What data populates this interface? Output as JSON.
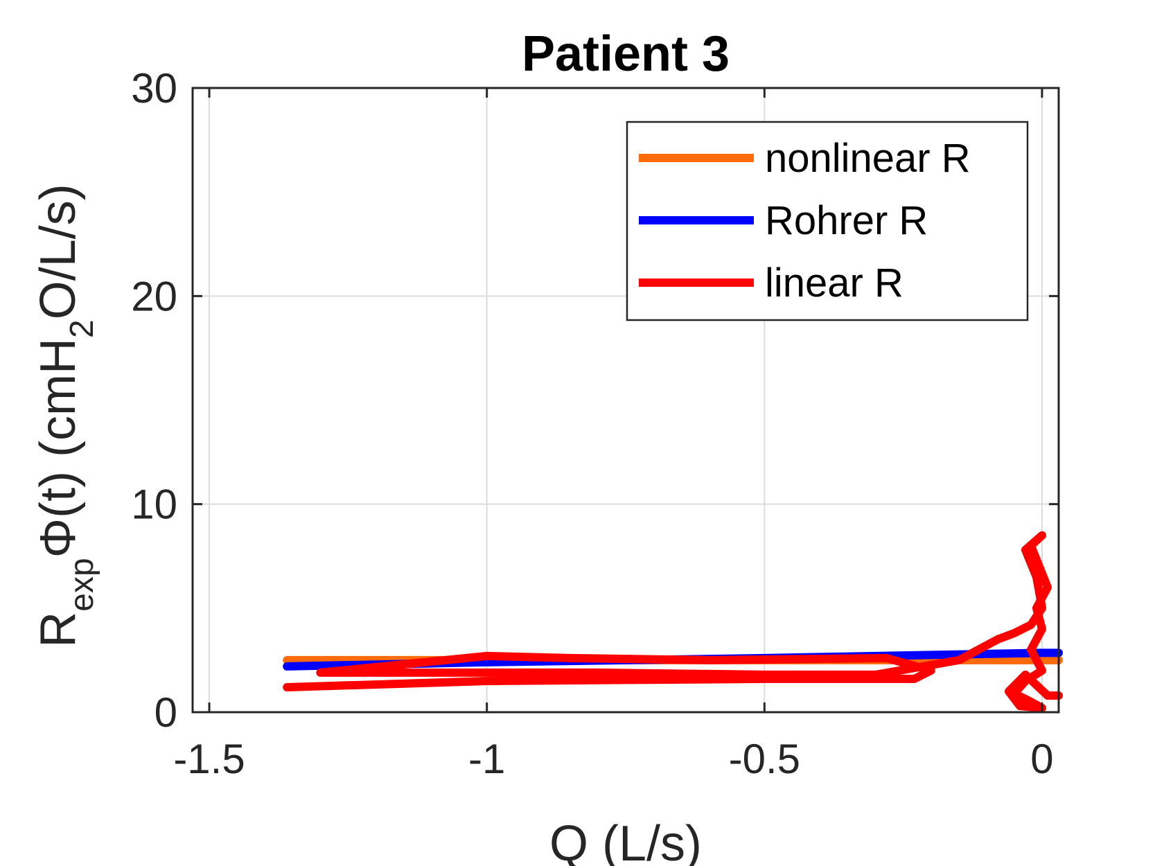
{
  "chart_data": {
    "type": "line",
    "title": "Patient 3",
    "xlabel": "Q (L/s)",
    "ylabel": {
      "main": "R",
      "sub_exp": "exp",
      "phi": "Φ(t) (cmH",
      "sub_2": "2",
      "rest": "O/L/s)"
    },
    "xlim": [
      -1.53,
      0.03
    ],
    "ylim": [
      0,
      30
    ],
    "xticks": [
      -1.5,
      -1,
      -0.5,
      0
    ],
    "xtick_labels": [
      "-1.5",
      "-1",
      "-0.5",
      "0"
    ],
    "yticks": [
      0,
      10,
      20,
      30
    ],
    "ytick_labels": [
      "0",
      "10",
      "20",
      "30"
    ],
    "grid": true,
    "legend_position": "top-right",
    "series": [
      {
        "name": "nonlinear R",
        "color": "#FF6A0A",
        "x": [
          -1.36,
          -1.0,
          -0.5,
          0.0,
          0.03
        ],
        "y": [
          2.5,
          2.5,
          2.5,
          2.5,
          2.5
        ]
      },
      {
        "name": "Rohrer R",
        "color": "#0000FF",
        "x": [
          -1.36,
          -1.0,
          -0.5,
          0.0,
          0.03
        ],
        "y": [
          2.2,
          2.4,
          2.6,
          2.85,
          2.85
        ]
      },
      {
        "name": "linear R",
        "color": "#FF0000",
        "x": [
          -1.36,
          -1.0,
          -0.5,
          -0.23,
          -0.2,
          -0.28,
          -0.6,
          -0.85,
          -1.0,
          -1.3,
          -1.0,
          -0.8,
          -0.5,
          -0.3,
          -0.15,
          -0.08,
          -0.05,
          -0.02,
          0.0,
          -0.01,
          -0.03,
          0.0,
          -0.02,
          0.01,
          -0.01,
          0.0,
          -0.02,
          -0.01,
          0.0,
          -0.03,
          -0.05,
          -0.02,
          0.0,
          -0.04,
          -0.06,
          -0.03,
          0.01,
          0.03
        ],
        "y": [
          1.2,
          1.5,
          1.6,
          1.6,
          2.0,
          2.6,
          2.5,
          2.6,
          2.7,
          1.9,
          1.9,
          1.9,
          1.8,
          1.8,
          2.5,
          3.5,
          3.8,
          4.2,
          5.0,
          6.5,
          7.8,
          8.5,
          8.0,
          6.0,
          5.0,
          4.0,
          3.0,
          2.5,
          2.0,
          1.5,
          0.9,
          0.5,
          0.2,
          0.3,
          1.0,
          1.8,
          0.8,
          0.8
        ]
      }
    ]
  }
}
